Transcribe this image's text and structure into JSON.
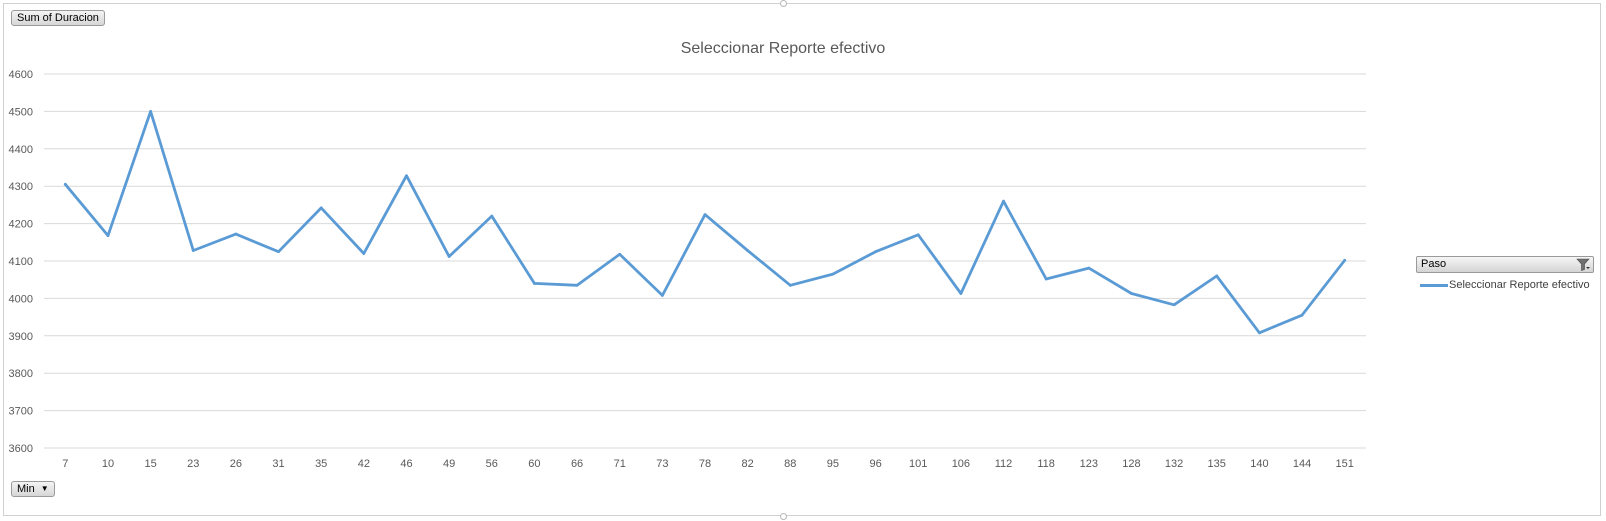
{
  "field_buttons": {
    "value_field": "Sum of Duracion",
    "axis_field": "Min",
    "legend_field": "Paso"
  },
  "icons": {
    "axis_dropdown": "chevron-down-icon",
    "legend_filter": "filter-icon"
  },
  "colors": {
    "series_line": "#5b9bd5",
    "gridline": "#d9d9d9",
    "axis_text": "#595959"
  },
  "chart_data": {
    "type": "line",
    "title": "Seleccionar Reporte efectivo",
    "xlabel": "",
    "ylabel": "",
    "ylim": [
      3600,
      4600
    ],
    "y_ticks": [
      3600,
      3700,
      3800,
      3900,
      4000,
      4100,
      4200,
      4300,
      4400,
      4500,
      4600
    ],
    "grid": true,
    "legend_placement": "right",
    "categories": [
      "7",
      "10",
      "15",
      "23",
      "26",
      "31",
      "35",
      "42",
      "46",
      "49",
      "56",
      "60",
      "66",
      "71",
      "73",
      "78",
      "82",
      "88",
      "95",
      "96",
      "101",
      "106",
      "112",
      "118",
      "123",
      "128",
      "132",
      "135",
      "140",
      "144",
      "151"
    ],
    "series": [
      {
        "name": "Seleccionar Reporte efectivo",
        "values": [
          4305,
          4168,
          4500,
          4128,
          4172,
          4125,
          4242,
          4120,
          4328,
          4112,
          4220,
          4040,
          4035,
          4118,
          4008,
          4224,
          4128,
          4035,
          4065,
          4125,
          4170,
          4013,
          4260,
          4052,
          4081,
          4013,
          3983,
          4060,
          3908,
          3955,
          4102
        ]
      }
    ]
  }
}
